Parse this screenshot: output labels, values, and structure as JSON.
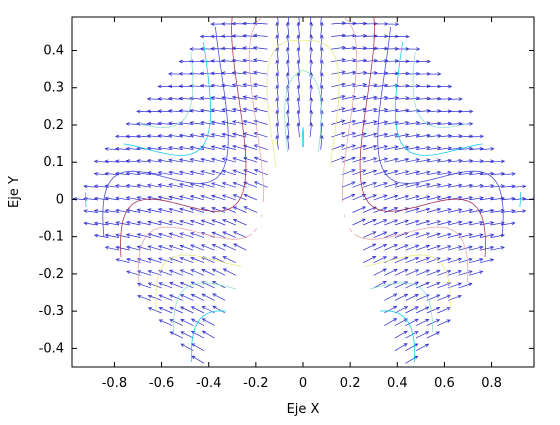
{
  "chart_data": {
    "type": "scatter",
    "subtype": "vector-field-with-contours",
    "title": "",
    "xlabel": "Eje X",
    "ylabel": "Eje Y",
    "xlim": [
      -0.98,
      0.98
    ],
    "ylim": [
      -0.45,
      0.49
    ],
    "xticks": [
      -0.8,
      -0.6,
      -0.4,
      -0.2,
      0,
      0.2,
      0.4,
      0.6,
      0.8
    ],
    "yticks": [
      -0.4,
      -0.3,
      -0.2,
      -0.1,
      0,
      0.1,
      0.2,
      0.3,
      0.4
    ],
    "xtick_labels": [
      "-0.8",
      "-0.6",
      "-0.4",
      "-0.2",
      "0",
      "0.2",
      "0.4",
      "0.6",
      "0.8"
    ],
    "ytick_labels": [
      "-0.4",
      "-0.3",
      "-0.2",
      "-0.1",
      "0",
      "0.1",
      "0.2",
      "0.3",
      "0.4"
    ],
    "grid": false,
    "legend": "none",
    "region": {
      "outer_boundary": [
        [
          -0.95,
          0
        ],
        [
          -0.35,
          0.49
        ],
        [
          0.35,
          0.49
        ],
        [
          0.95,
          0
        ],
        [
          0.45,
          -0.45
        ],
        [
          -0.45,
          -0.45
        ]
      ],
      "inner_cutout": [
        [
          -0.4,
          -0.45
        ],
        [
          -0.1,
          0.12
        ],
        [
          0,
          0.15
        ],
        [
          0.1,
          0.12
        ],
        [
          0.4,
          -0.45
        ]
      ]
    },
    "vector_color": "#2a2ad0",
    "contour_colors": [
      "#00c8e6",
      "#7fe0c8",
      "#e6e67a",
      "#e6a0a0",
      "#a02040",
      "#3a3ad0"
    ]
  }
}
